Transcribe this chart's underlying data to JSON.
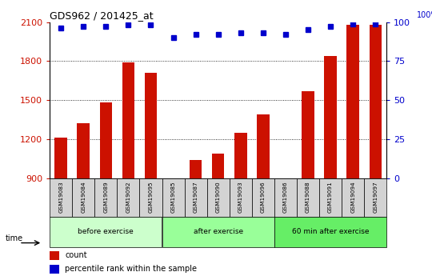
{
  "title": "GDS962 / 201425_at",
  "samples": [
    "GSM19083",
    "GSM19084",
    "GSM19089",
    "GSM19092",
    "GSM19095",
    "GSM19085",
    "GSM19087",
    "GSM19090",
    "GSM19093",
    "GSM19096",
    "GSM19086",
    "GSM19088",
    "GSM19091",
    "GSM19094",
    "GSM19097"
  ],
  "counts": [
    1210,
    1320,
    1480,
    1790,
    1710,
    870,
    1040,
    1090,
    1250,
    1390,
    870,
    1570,
    1840,
    2080,
    2080
  ],
  "percentile_ranks": [
    96,
    97,
    97,
    98,
    98,
    90,
    92,
    92,
    93,
    93,
    92,
    95,
    97,
    99,
    99
  ],
  "groups": [
    {
      "label": "before exercise",
      "start": 0,
      "end": 5,
      "color": "#ccffcc"
    },
    {
      "label": "after exercise",
      "start": 5,
      "end": 10,
      "color": "#99ff99"
    },
    {
      "label": "60 min after exercise",
      "start": 10,
      "end": 15,
      "color": "#66ee66"
    }
  ],
  "ylim_left": [
    900,
    2100
  ],
  "ylim_right": [
    0,
    100
  ],
  "yticks_left": [
    900,
    1200,
    1500,
    1800,
    2100
  ],
  "yticks_right": [
    0,
    25,
    50,
    75,
    100
  ],
  "bar_color": "#cc1100",
  "dot_color": "#0000cc",
  "grid_color": "#000000",
  "label_count": "count",
  "label_percentile": "percentile rank within the sample"
}
